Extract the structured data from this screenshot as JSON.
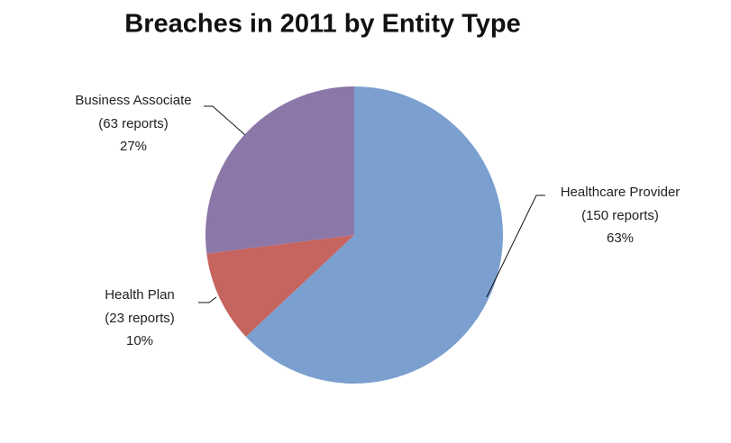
{
  "chart_data": {
    "type": "pie",
    "title": "Breaches in 2011 by Entity Type",
    "categories": [
      "Healthcare Provider",
      "Health Plan",
      "Business Associate"
    ],
    "values": [
      63,
      10,
      27
    ],
    "value_labels": [
      "63%",
      "10%",
      "27%"
    ],
    "count_labels": [
      "(150 reports)",
      "(23 reports)",
      "(63 reports)"
    ],
    "colors": [
      "#7b9fcf",
      "#c6645f",
      "#8c77a9"
    ]
  }
}
